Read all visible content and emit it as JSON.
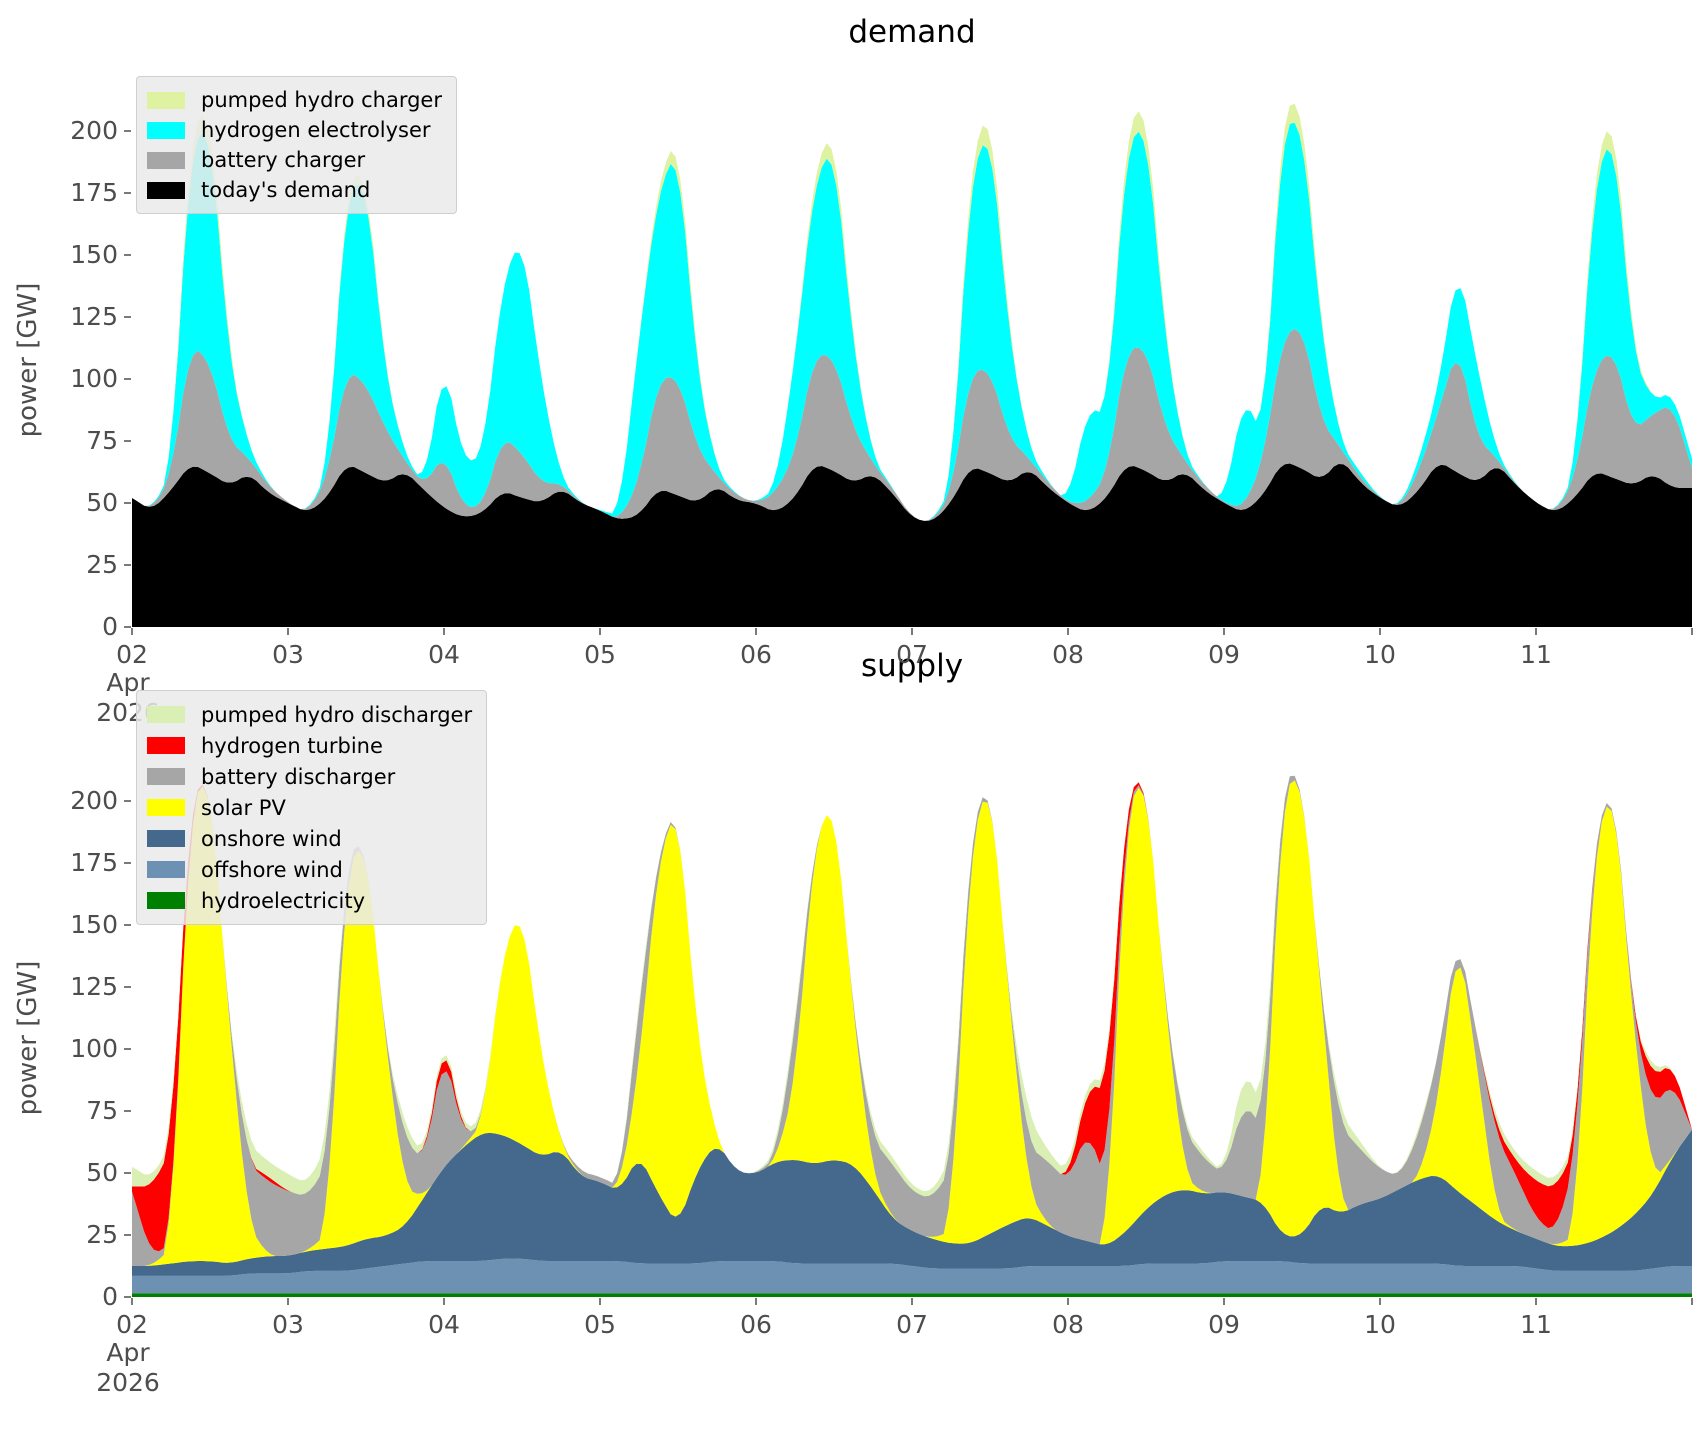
{
  "figure": {
    "background": "#ffffff",
    "tick_text_color": "#4d4d4d",
    "tick_mark_color": "#7a7a7a",
    "legend_background": "#eaeaea",
    "legend_border": "#cfcfcf"
  },
  "x_axis": {
    "tick_labels": [
      "02",
      "03",
      "04",
      "05",
      "06",
      "07",
      "08",
      "09",
      "10",
      "11"
    ],
    "month_label": "Apr",
    "year_label": "2026",
    "days": 10,
    "x_step_hours": 3
  },
  "chart_data": [
    {
      "type": "area",
      "stacked": true,
      "title": "demand",
      "ylabel": "power [GW]",
      "ylim": [
        0,
        216.4
      ],
      "yticks": [
        0,
        25,
        50,
        75,
        100,
        125,
        150,
        175,
        200
      ],
      "grid": false,
      "legend_position": "upper left",
      "x_start": "2026-04-02 00:00",
      "x_step_hours": 3,
      "legend_order_top_to_bottom": [
        "pumped hydro charger",
        "hydrogen electrolyser",
        "battery charger",
        "today's demand"
      ],
      "series": [
        {
          "name": "today's demand",
          "color": "#000000",
          "values": [
            52,
            47,
            55,
            66,
            62,
            57,
            62,
            54,
            50,
            46,
            52,
            66,
            62,
            58,
            63,
            55,
            48,
            44,
            46,
            55,
            52,
            50,
            56,
            50,
            47,
            43,
            45,
            56,
            53,
            50,
            57,
            51,
            50,
            46,
            52,
            66,
            63,
            58,
            62,
            54,
            44,
            42,
            50,
            65,
            62,
            58,
            64,
            56,
            50,
            46,
            52,
            66,
            63,
            58,
            63,
            55,
            50,
            46,
            53,
            67,
            64,
            59,
            68,
            58,
            52,
            48,
            55,
            67,
            62,
            58,
            66,
            57,
            50,
            46,
            52,
            63,
            60,
            57,
            62,
            56,
            56
          ]
        },
        {
          "name": "battery charger",
          "color": "#a6a6a6",
          "values": [
            0,
            0,
            6,
            48,
            45,
            18,
            6,
            3,
            0,
            0,
            8,
            38,
            36,
            22,
            4,
            2,
            22,
            4,
            3,
            22,
            18,
            8,
            2,
            0,
            0,
            0,
            14,
            44,
            48,
            22,
            4,
            2,
            0,
            8,
            18,
            44,
            46,
            22,
            4,
            2,
            0,
            0,
            4,
            38,
            42,
            18,
            4,
            2,
            0,
            4,
            10,
            46,
            50,
            22,
            4,
            2,
            0,
            2,
            14,
            50,
            58,
            24,
            4,
            2,
            0,
            0,
            8,
            20,
            52,
            18,
            2,
            0,
            0,
            0,
            8,
            42,
            52,
            22,
            24,
            34,
            8
          ]
        },
        {
          "name": "hydrogen electrolyser",
          "color": "#00ffff",
          "values": [
            0,
            0,
            2,
            80,
            95,
            32,
            4,
            0,
            0,
            0,
            2,
            72,
            82,
            22,
            2,
            0,
            38,
            18,
            20,
            62,
            88,
            40,
            2,
            0,
            0,
            2,
            58,
            76,
            92,
            30,
            2,
            0,
            0,
            2,
            38,
            70,
            85,
            32,
            2,
            0,
            0,
            0,
            2,
            78,
            98,
            40,
            4,
            0,
            0,
            38,
            24,
            82,
            90,
            35,
            2,
            0,
            0,
            45,
            10,
            85,
            82,
            35,
            2,
            2,
            0,
            0,
            4,
            10,
            34,
            28,
            2,
            0,
            0,
            0,
            2,
            75,
            88,
            30,
            5,
            5,
            4
          ]
        },
        {
          "name": "pumped hydro charger",
          "color": "#dff2a1",
          "values": [
            0,
            0,
            0,
            6,
            8,
            2,
            0,
            0,
            0,
            0,
            0,
            3,
            4,
            1,
            0,
            0,
            0,
            0,
            0,
            0,
            0,
            0,
            0,
            0,
            0,
            0,
            0,
            4,
            6,
            2,
            0,
            0,
            0,
            0,
            0,
            5,
            7,
            2,
            0,
            0,
            0,
            0,
            0,
            6,
            9,
            2,
            0,
            0,
            0,
            0,
            0,
            7,
            9,
            2,
            0,
            0,
            0,
            0,
            0,
            7,
            8,
            2,
            0,
            0,
            0,
            0,
            0,
            0,
            0,
            0,
            0,
            0,
            0,
            0,
            0,
            6,
            8,
            2,
            0,
            0,
            0
          ]
        }
      ]
    },
    {
      "type": "area",
      "stacked": true,
      "title": "supply",
      "ylabel": "power [GW]",
      "ylim": [
        0,
        210.3
      ],
      "yticks": [
        0,
        25,
        50,
        75,
        100,
        125,
        150,
        175,
        200
      ],
      "grid": false,
      "legend_position": "upper left",
      "x_start": "2026-04-02 00:00",
      "x_step_hours": 3,
      "legend_order_top_to_bottom": [
        "pumped hydro discharger",
        "hydrogen turbine",
        "battery discharger",
        "solar PV",
        "onshore wind",
        "offshore wind",
        "hydroelectricity"
      ],
      "series": [
        {
          "name": "hydroelectricity",
          "color": "#008000",
          "values": [
            1.5,
            1.5,
            1.5,
            1.5,
            1.5,
            1.5,
            1.5,
            1.5,
            1.5,
            1.5,
            1.5,
            1.5,
            1.5,
            1.5,
            1.5,
            1.5,
            1.5,
            1.5,
            1.5,
            1.5,
            1.5,
            1.5,
            1.5,
            1.5,
            1.5,
            1.5,
            1.5,
            1.5,
            1.5,
            1.5,
            1.5,
            1.5,
            1.5,
            1.5,
            1.5,
            1.5,
            1.5,
            1.5,
            1.5,
            1.5,
            1.5,
            1.5,
            1.5,
            1.5,
            1.5,
            1.5,
            1.5,
            1.5,
            1.5,
            1.5,
            1.5,
            1.5,
            1.5,
            1.5,
            1.5,
            1.5,
            1.5,
            1.5,
            1.5,
            1.5,
            1.5,
            1.5,
            1.5,
            1.5,
            1.5,
            1.5,
            1.5,
            1.5,
            1.5,
            1.5,
            1.5,
            1.5,
            1.5,
            1.5,
            1.5,
            1.5,
            1.5,
            1.5,
            1.5,
            1.5,
            1.5
          ]
        },
        {
          "name": "offshore wind",
          "color": "#6d91b3",
          "values": [
            7,
            7,
            7,
            7,
            7,
            7,
            8,
            8,
            8,
            9,
            9,
            9,
            10,
            11,
            12,
            13,
            13,
            13,
            13,
            14,
            14,
            13,
            13,
            13,
            13,
            13,
            12,
            12,
            12,
            12,
            13,
            13,
            13,
            13,
            12,
            12,
            12,
            12,
            12,
            12,
            11,
            10,
            10,
            10,
            10,
            10,
            11,
            11,
            11,
            11,
            11,
            11,
            12,
            12,
            12,
            12,
            13,
            13,
            13,
            13,
            12,
            12,
            12,
            12,
            12,
            12,
            12,
            12,
            11,
            11,
            11,
            11,
            10,
            9,
            9,
            9,
            9,
            9,
            10,
            11,
            11
          ]
        },
        {
          "name": "onshore wind",
          "color": "#45698c",
          "values": [
            4,
            4,
            5,
            6,
            6,
            5,
            6,
            7,
            7,
            8,
            9,
            10,
            12,
            12,
            15,
            26,
            38,
            46,
            52,
            50,
            46,
            42,
            45,
            34,
            32,
            28,
            44,
            28,
            15,
            38,
            48,
            36,
            35,
            40,
            42,
            40,
            42,
            40,
            30,
            18,
            14,
            12,
            10,
            10,
            14,
            18,
            20,
            16,
            12,
            10,
            8,
            14,
            22,
            28,
            30,
            28,
            28,
            26,
            24,
            10,
            11,
            24,
            20,
            24,
            26,
            30,
            34,
            36,
            30,
            24,
            18,
            14,
            12,
            10,
            10,
            12,
            16,
            22,
            30,
            44,
            55
          ]
        },
        {
          "name": "solar PV",
          "color": "#ffff00",
          "values": [
            0,
            0,
            6,
            185,
            195,
            95,
            13,
            0,
            0,
            0,
            6,
            153,
            160,
            78,
            15,
            0,
            0,
            0,
            4,
            73,
            95,
            40,
            2,
            0,
            0,
            0,
            35,
            135,
            170,
            52,
            0,
            0,
            0,
            0,
            30,
            130,
            145,
            60,
            5,
            0,
            0,
            0,
            5,
            160,
            185,
            88,
            10,
            0,
            0,
            0,
            0,
            170,
            175,
            75,
            5,
            0,
            0,
            0,
            0,
            180,
            188,
            82,
            0,
            0,
            0,
            0,
            0,
            30,
            105,
            55,
            2,
            0,
            0,
            0,
            4,
            160,
            180,
            75,
            5,
            0,
            0
          ]
        },
        {
          "name": "battery discharger",
          "color": "#a6a6a6",
          "values": [
            30,
            4,
            2,
            0,
            0,
            0,
            25,
            30,
            26,
            22,
            28,
            5,
            0,
            0,
            20,
            14,
            48,
            4,
            0,
            0,
            0,
            0,
            0,
            2,
            2,
            2,
            25,
            3,
            0,
            0,
            0,
            0,
            0,
            2,
            22,
            0,
            0,
            0,
            15,
            22,
            16,
            16,
            25,
            5,
            0,
            0,
            18,
            26,
            22,
            45,
            25,
            3,
            0,
            0,
            18,
            14,
            7,
            38,
            30,
            5,
            0,
            0,
            35,
            22,
            12,
            5,
            18,
            18,
            0,
            12,
            32,
            22,
            8,
            5,
            30,
            4,
            0,
            4,
            30,
            30,
            0
          ]
        },
        {
          "name": "hydrogen turbine",
          "color": "#ff0000",
          "values": [
            2,
            28,
            38,
            2,
            0,
            0,
            0,
            2,
            0,
            0,
            0,
            0,
            0,
            0,
            0,
            0,
            6,
            0,
            0,
            0,
            0,
            0,
            0,
            0,
            0,
            0,
            0,
            0,
            0,
            0,
            0,
            0,
            0,
            0,
            0,
            0,
            0,
            0,
            0,
            0,
            0,
            0,
            0,
            0,
            0,
            0,
            0,
            0,
            0,
            18,
            38,
            3,
            0,
            0,
            0,
            0,
            0,
            0,
            0,
            0,
            0,
            0,
            0,
            0,
            0,
            0,
            0,
            0,
            0,
            0,
            3,
            6,
            15,
            18,
            6,
            0,
            0,
            0,
            12,
            8,
            0
          ]
        },
        {
          "name": "pumped hydro discharger",
          "color": "#d9efb3",
          "values": [
            8,
            3,
            3,
            0,
            0,
            0,
            8,
            6,
            7,
            5,
            8,
            0,
            0,
            0,
            5,
            2,
            2,
            2,
            2,
            0,
            0,
            0,
            0,
            0,
            0,
            0,
            3,
            0,
            0,
            0,
            0,
            0,
            0,
            2,
            3,
            0,
            0,
            0,
            3,
            3,
            2,
            2,
            5,
            0,
            0,
            0,
            12,
            4,
            3,
            3,
            3,
            0,
            0,
            0,
            2,
            2,
            0,
            14,
            8,
            0,
            0,
            0,
            5,
            3,
            0,
            0,
            2,
            0,
            0,
            0,
            3,
            3,
            4,
            3,
            2,
            0,
            0,
            0,
            3,
            0,
            0
          ]
        }
      ]
    }
  ]
}
